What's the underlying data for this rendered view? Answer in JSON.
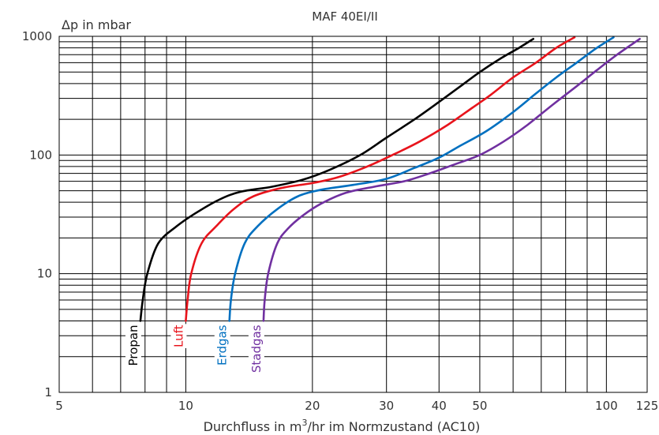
{
  "chart_data": {
    "type": "line",
    "title": "MAF 40EI/II",
    "ylabel": "Δp in mbar",
    "xlabel": {
      "prefix": "Durchfluss in m",
      "superscript": "3",
      "suffix": "/hr im Normzustand (AC10)"
    },
    "x_scale": "log",
    "y_scale": "log",
    "xlim": [
      5,
      125
    ],
    "ylim": [
      1,
      1000
    ],
    "x_tick_labels": [
      {
        "value": 5,
        "label": "5"
      },
      {
        "value": 10,
        "label": "10"
      },
      {
        "value": 20,
        "label": "20"
      },
      {
        "value": 30,
        "label": "30"
      },
      {
        "value": 40,
        "label": "40"
      },
      {
        "value": 50,
        "label": "50"
      },
      {
        "value": 100,
        "label": "100"
      },
      {
        "value": 125,
        "label": "125"
      }
    ],
    "y_tick_labels": [
      {
        "value": 1,
        "label": "1"
      },
      {
        "value": 10,
        "label": "10"
      },
      {
        "value": 100,
        "label": "100"
      },
      {
        "value": 1000,
        "label": "1000"
      }
    ],
    "x_grid": [
      6,
      7,
      8,
      9,
      10,
      20,
      30,
      40,
      50,
      60,
      70,
      80,
      90,
      100,
      125
    ],
    "y_grid": [
      2,
      3,
      4,
      5,
      6,
      7,
      8,
      9,
      10,
      20,
      30,
      40,
      50,
      60,
      70,
      80,
      90,
      100,
      200,
      300,
      400,
      500,
      600,
      700,
      800,
      900,
      1000
    ],
    "grid": true,
    "series": [
      {
        "name": "Propan",
        "color": "#000000",
        "points": [
          [
            7.8,
            4
          ],
          [
            7.9,
            6
          ],
          [
            8.1,
            10
          ],
          [
            8.6,
            18
          ],
          [
            9.5,
            25
          ],
          [
            10.5,
            32
          ],
          [
            12,
            42
          ],
          [
            13.5,
            49
          ],
          [
            16,
            54
          ],
          [
            19,
            62
          ],
          [
            22,
            75
          ],
          [
            26,
            100
          ],
          [
            30,
            140
          ],
          [
            35,
            200
          ],
          [
            40,
            280
          ],
          [
            45,
            380
          ],
          [
            50,
            500
          ],
          [
            56,
            650
          ],
          [
            62,
            800
          ],
          [
            67,
            950
          ]
        ]
      },
      {
        "name": "Luft",
        "color": "#e8141c",
        "points": [
          [
            10,
            4
          ],
          [
            10.1,
            6
          ],
          [
            10.3,
            10
          ],
          [
            10.9,
            18
          ],
          [
            11.8,
            25
          ],
          [
            13,
            35
          ],
          [
            14.5,
            45
          ],
          [
            17,
            53
          ],
          [
            20,
            58
          ],
          [
            23,
            65
          ],
          [
            27,
            80
          ],
          [
            31,
            100
          ],
          [
            36,
            130
          ],
          [
            42,
            180
          ],
          [
            48,
            250
          ],
          [
            53,
            320
          ],
          [
            60,
            450
          ],
          [
            68,
            600
          ],
          [
            76,
            800
          ],
          [
            84,
            980
          ]
        ]
      },
      {
        "name": "Erdgas",
        "color": "#0070c0",
        "points": [
          [
            12.7,
            4
          ],
          [
            12.8,
            6
          ],
          [
            13.1,
            10
          ],
          [
            13.8,
            18
          ],
          [
            14.8,
            25
          ],
          [
            16.5,
            35
          ],
          [
            18.5,
            45
          ],
          [
            21,
            51
          ],
          [
            25,
            56
          ],
          [
            30,
            63
          ],
          [
            35,
            78
          ],
          [
            40,
            95
          ],
          [
            45,
            120
          ],
          [
            52,
            160
          ],
          [
            60,
            230
          ],
          [
            68,
            330
          ],
          [
            76,
            450
          ],
          [
            85,
            600
          ],
          [
            94,
            780
          ],
          [
            104,
            980
          ]
        ]
      },
      {
        "name": "Stadgas",
        "color": "#7030a0",
        "points": [
          [
            15.3,
            4
          ],
          [
            15.4,
            6
          ],
          [
            15.7,
            10
          ],
          [
            16.5,
            18
          ],
          [
            17.5,
            24
          ],
          [
            19,
            31
          ],
          [
            21,
            39
          ],
          [
            24,
            48
          ],
          [
            28,
            54
          ],
          [
            33,
            60
          ],
          [
            38,
            70
          ],
          [
            43,
            82
          ],
          [
            50,
            100
          ],
          [
            57,
            130
          ],
          [
            65,
            180
          ],
          [
            75,
            270
          ],
          [
            85,
            380
          ],
          [
            95,
            520
          ],
          [
            106,
            700
          ],
          [
            120,
            950
          ]
        ]
      }
    ]
  }
}
